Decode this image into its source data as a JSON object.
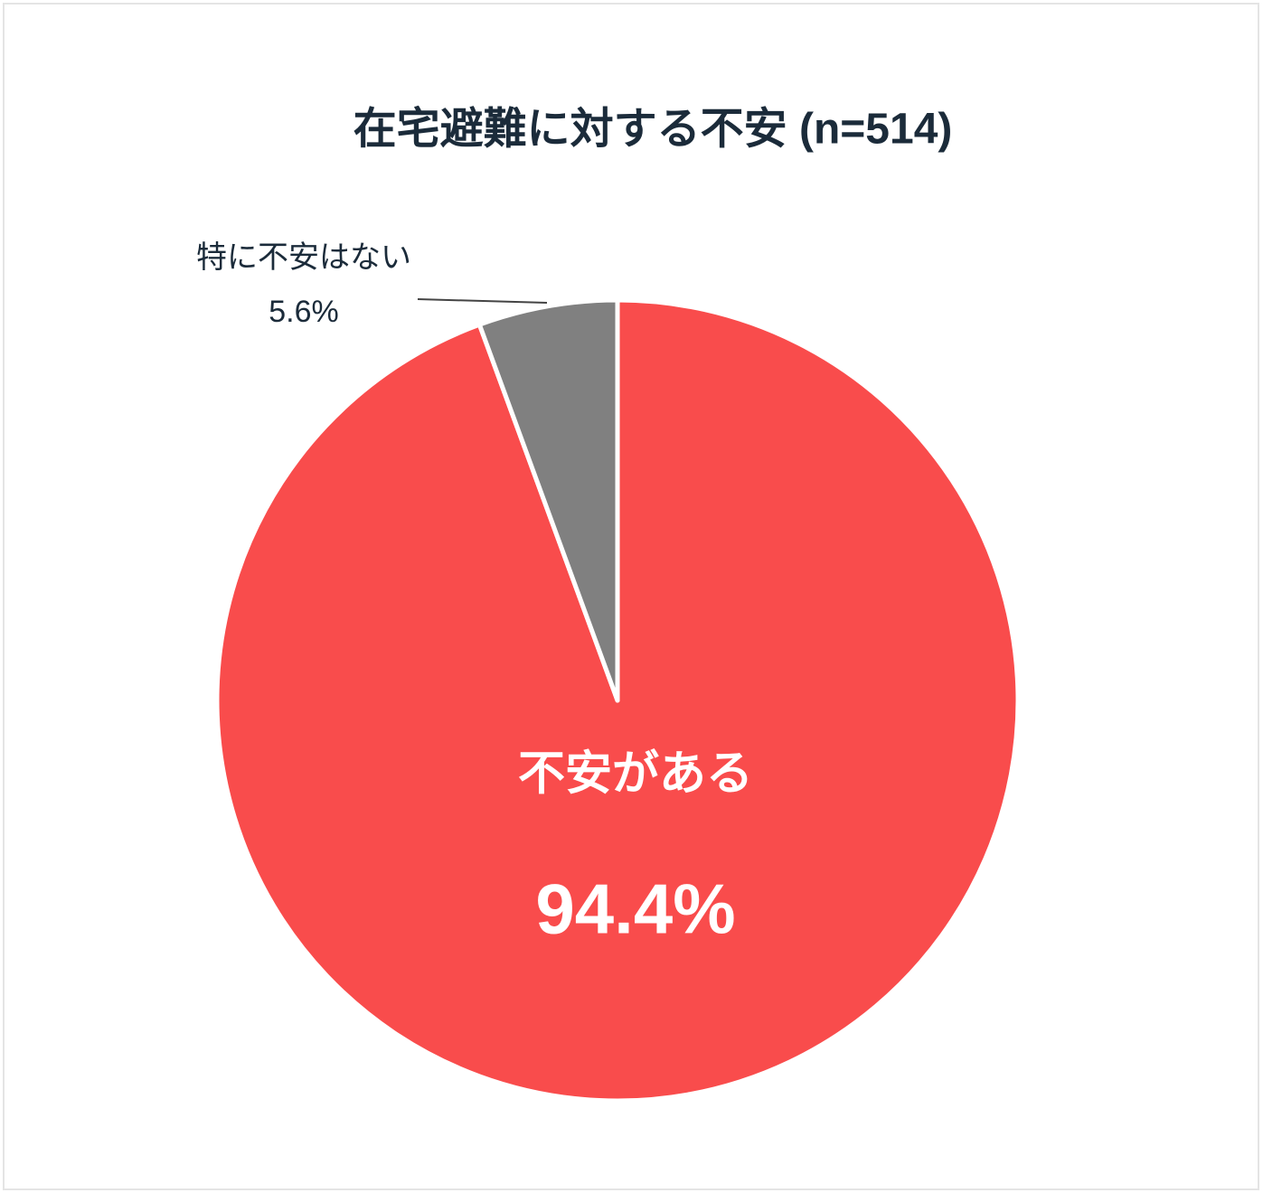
{
  "chart_data": {
    "type": "pie",
    "title": "在宅避難に対する不安 (n=514)",
    "categories": [
      "不安がある",
      "特に不安はない"
    ],
    "values": [
      94.4,
      5.6
    ],
    "value_labels": [
      "94.4%",
      "5.6%"
    ],
    "colors": [
      "#f94c4c",
      "#808080"
    ]
  }
}
